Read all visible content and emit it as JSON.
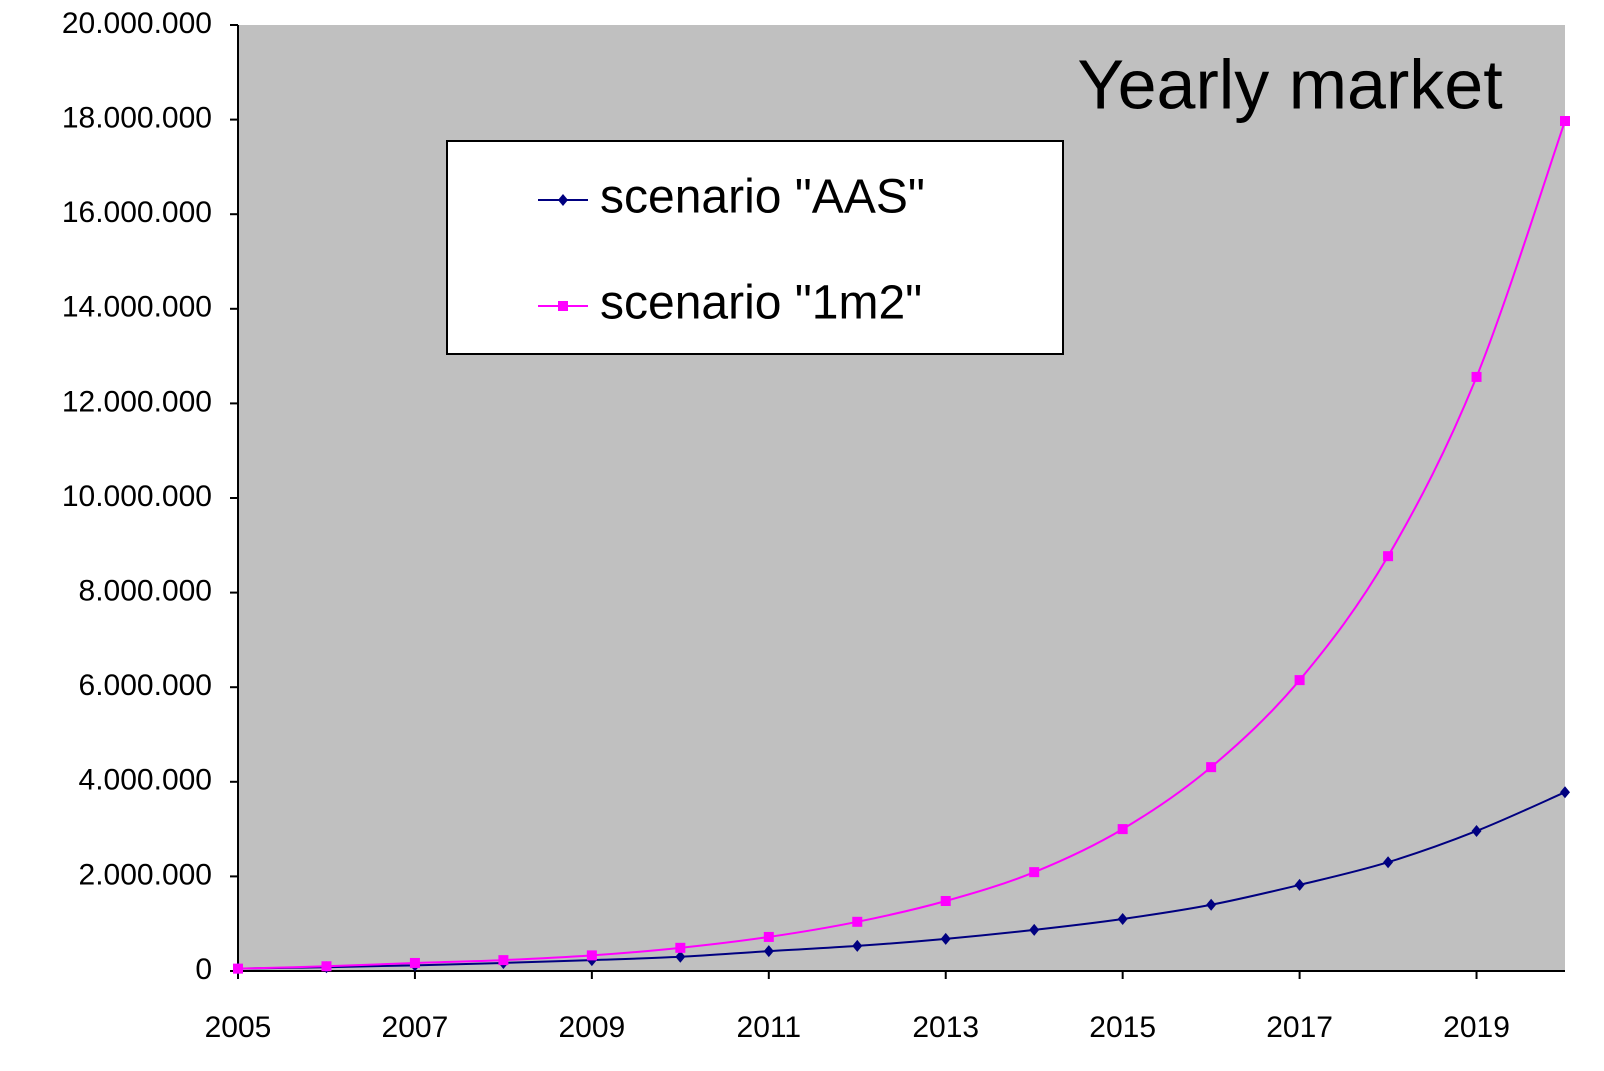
{
  "chart_data": {
    "type": "line",
    "title": "Yearly market",
    "x": [
      2005,
      2006,
      2007,
      2008,
      2009,
      2010,
      2011,
      2012,
      2013,
      2014,
      2015,
      2016,
      2017,
      2018,
      2019,
      2020
    ],
    "series": [
      {
        "name": "scenario \"AAS\"",
        "color": "#000080",
        "marker": "diamond",
        "values": [
          50000,
          80000,
          120000,
          170000,
          230000,
          300000,
          420000,
          530000,
          680000,
          870000,
          1100000,
          1400000,
          1820000,
          2300000,
          2960000,
          3780000
        ]
      },
      {
        "name": "scenario \"1m2\"",
        "color": "#ff00ff",
        "marker": "square",
        "values": [
          50000,
          100000,
          170000,
          230000,
          330000,
          490000,
          720000,
          1040000,
          1480000,
          2090000,
          3000000,
          4310000,
          6150000,
          8770000,
          12560000,
          17970000
        ]
      }
    ],
    "xlim": [
      2005,
      2020
    ],
    "xticks": [
      2005,
      2007,
      2009,
      2011,
      2013,
      2015,
      2017,
      2019
    ],
    "ylim": [
      0,
      20000000
    ],
    "yticks": [
      0,
      {
        "value": 2000000,
        "label": "2.000.000"
      },
      {
        "value": 4000000,
        "label": "4.000.000"
      },
      {
        "value": 6000000,
        "label": "6.000.000"
      },
      {
        "value": 8000000,
        "label": "8.000.000"
      },
      {
        "value": 10000000,
        "label": "10.000.000"
      },
      {
        "value": 12000000,
        "label": "12.000.000"
      },
      {
        "value": 14000000,
        "label": "14.000.000"
      },
      {
        "value": 16000000,
        "label": "16.000.000"
      },
      {
        "value": 18000000,
        "label": "18.000.000"
      },
      {
        "value": 20000000,
        "label": "20.000.000"
      }
    ],
    "plot_background": "#c0c0c0",
    "grid": false,
    "legend": "top"
  }
}
